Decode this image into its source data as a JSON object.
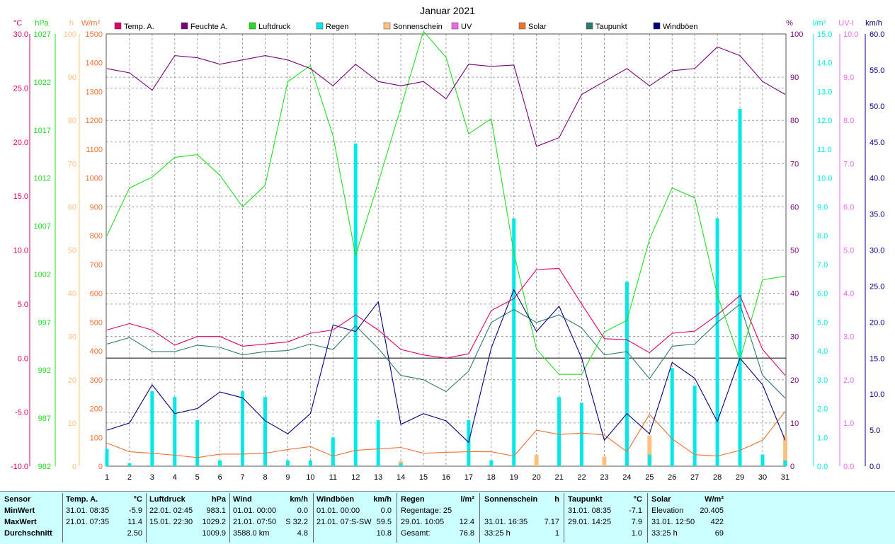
{
  "title": "Januar 2021",
  "colors": {
    "temp": "#e0006a",
    "hum": "#7a007a",
    "press": "#22dd22",
    "rain": "#00e8e8",
    "sun": "#ffc080",
    "uv": "#ee66ee",
    "solar": "#f07030",
    "dew": "#2f7a70",
    "gust": "#000080",
    "stats_bg": "#ccffff"
  },
  "legend": [
    {
      "key": "temp",
      "label": "Temp. A."
    },
    {
      "key": "hum",
      "label": "Feuchte A."
    },
    {
      "key": "press",
      "label": "Luftdruck"
    },
    {
      "key": "rain",
      "label": "Regen"
    },
    {
      "key": "sun",
      "label": "Sonnenschein"
    },
    {
      "key": "uv",
      "label": "UV"
    },
    {
      "key": "solar",
      "label": "Solar"
    },
    {
      "key": "dew",
      "label": "Taupunkt"
    },
    {
      "key": "gust",
      "label": "Windböen"
    }
  ],
  "axis_units": {
    "temp": "°C",
    "press": "hPa",
    "sun": "h",
    "solar": "W/m²",
    "hum": "%",
    "rain": "l/m²",
    "uv": "UV-I",
    "wind": "km/h"
  },
  "chart_data": {
    "type": "line",
    "title": "Januar 2021",
    "x": [
      1,
      2,
      3,
      4,
      5,
      6,
      7,
      8,
      9,
      10,
      11,
      12,
      13,
      14,
      15,
      16,
      17,
      18,
      19,
      20,
      21,
      22,
      23,
      24,
      25,
      26,
      27,
      28,
      29,
      30,
      31
    ],
    "axes": {
      "temp": {
        "range": [
          -10,
          30
        ],
        "ticks": [
          "30.0",
          "25.0",
          "20.0",
          "15.0",
          "10.0",
          "5.0",
          "0.0",
          "-5.0",
          "-10.0"
        ]
      },
      "press": {
        "range": [
          982,
          1030
        ],
        "ticks": [
          "1027",
          "1022",
          "1017",
          "1012",
          "1007",
          "1002",
          "997",
          "992",
          "987",
          "982"
        ]
      },
      "sun": {
        "range": [
          0,
          100
        ],
        "ticks": [
          "100",
          "90",
          "80",
          "70",
          "60",
          "50",
          "40",
          "30",
          "20",
          "10",
          "0"
        ]
      },
      "solar": {
        "range": [
          0,
          1500
        ],
        "ticks": [
          "1500",
          "1400",
          "1300",
          "1200",
          "1100",
          "1000",
          "900",
          "800",
          "700",
          "600",
          "500",
          "400",
          "300",
          "200",
          "100",
          "0"
        ]
      },
      "hum": {
        "range": [
          0,
          100
        ],
        "ticks": [
          "100",
          "90",
          "80",
          "70",
          "60",
          "50",
          "40",
          "30",
          "20",
          "10",
          "0"
        ]
      },
      "rain": {
        "range": [
          0,
          15
        ],
        "ticks": [
          "15.0",
          "14.0",
          "13.0",
          "12.0",
          "11.0",
          "10.0",
          "9.0",
          "8.0",
          "7.0",
          "6.0",
          "5.0",
          "4.0",
          "3.0",
          "2.0",
          "1.0",
          "0.0"
        ]
      },
      "uv": {
        "range": [
          0,
          10
        ],
        "ticks": [
          "10.0",
          "9.0",
          "8.0",
          "7.0",
          "6.0",
          "5.0",
          "4.0",
          "3.0",
          "2.0",
          "1.0",
          "0.0"
        ]
      },
      "wind": {
        "range": [
          0,
          60
        ],
        "ticks": [
          "60.0",
          "55.0",
          "50.0",
          "45.0",
          "40.0",
          "35.0",
          "30.0",
          "25.0",
          "20.0",
          "15.0",
          "10.0",
          "5.0",
          "0.0"
        ]
      }
    },
    "series": [
      {
        "key": "temp",
        "name": "Temp. A.",
        "axis": "temp",
        "values": [
          2.6,
          3.2,
          2.6,
          1.2,
          2.0,
          2.0,
          1.1,
          1.3,
          1.5,
          2.3,
          2.6,
          4.0,
          2.6,
          0.8,
          0.3,
          0.0,
          0.4,
          4.4,
          5.5,
          8.2,
          8.3,
          5.0,
          1.8,
          1.7,
          0.5,
          2.3,
          2.5,
          4.0,
          5.8,
          0.8,
          -1.6
        ]
      },
      {
        "key": "hum",
        "name": "Feuchte A.",
        "axis": "hum",
        "values": [
          92,
          91,
          87,
          95,
          94.5,
          93,
          94,
          95,
          94,
          92,
          88,
          93,
          89,
          88,
          89,
          85,
          93,
          92.5,
          92.8,
          74,
          76,
          86,
          89,
          92,
          88,
          91.5,
          92,
          97,
          95,
          89,
          86
        ]
      },
      {
        "key": "press",
        "name": "Luftdruck",
        "axis": "press",
        "values": [
          1007.6,
          1012.9,
          1014.1,
          1016.3,
          1016.6,
          1014.3,
          1010.8,
          1013.2,
          1024.7,
          1026.5,
          1018.7,
          1005.4,
          1013.5,
          1021.8,
          1030.3,
          1027.4,
          1018.9,
          1020.6,
          1005.7,
          995.0,
          992.2,
          992.2,
          996.9,
          998.2,
          1007.2,
          1012.9,
          1011.8,
          1001.0,
          993.8,
          1002.7,
          1003.1
        ]
      },
      {
        "key": "dew",
        "name": "Taupunkt",
        "axis": "temp",
        "values": [
          1.3,
          1.9,
          0.6,
          0.6,
          1.2,
          1.0,
          0.3,
          0.6,
          0.7,
          1.3,
          0.8,
          3.0,
          0.9,
          -1.6,
          -2.0,
          -3.1,
          -1.2,
          3.3,
          4.5,
          3.3,
          4.0,
          2.8,
          0.3,
          0.6,
          -1.9,
          1.1,
          1.3,
          3.3,
          5.0,
          -1.6,
          -3.7
        ]
      },
      {
        "key": "gust",
        "name": "Windböen",
        "axis": "wind",
        "values": [
          5.0,
          6.0,
          11.3,
          7.3,
          8.0,
          10.3,
          9.5,
          6.3,
          4.5,
          7.3,
          19.6,
          18.7,
          22.8,
          5.8,
          7.3,
          6.3,
          3.3,
          16.4,
          24.5,
          18.7,
          22.2,
          15.0,
          3.6,
          7.3,
          4.5,
          14.4,
          12.2,
          6.2,
          15.0,
          11.3,
          3.6
        ]
      },
      {
        "key": "solar",
        "name": "Solar",
        "axis": "solar",
        "values": [
          80,
          50,
          45,
          38,
          30,
          42,
          42,
          45,
          58,
          68,
          35,
          55,
          60,
          65,
          45,
          48,
          50,
          50,
          35,
          125,
          110,
          115,
          108,
          50,
          180,
          95,
          40,
          35,
          55,
          90,
          190
        ]
      },
      {
        "key": "sun",
        "name": "Sonnenschein",
        "axis": "sun",
        "values": [
          0,
          0,
          0,
          0,
          0,
          0,
          0,
          0,
          0,
          0,
          0,
          0,
          0,
          1.2,
          0,
          0,
          0,
          0,
          0,
          2.6,
          0,
          0,
          2.2,
          0,
          7.1,
          0,
          0,
          0,
          0,
          0,
          7.2
        ]
      },
      {
        "key": "rain",
        "name": "Regen",
        "axis": "rain",
        "values": [
          0.6,
          0.1,
          2.6,
          2.4,
          1.6,
          0.2,
          2.6,
          2.4,
          0.2,
          0.2,
          1.0,
          11.2,
          1.6,
          0.1,
          0,
          0,
          1.6,
          0.2,
          8.6,
          0,
          2.4,
          2.2,
          0,
          6.4,
          0.4,
          3.4,
          2.8,
          8.6,
          12.4,
          0.4,
          0.2
        ]
      }
    ]
  },
  "stats": {
    "sensor": {
      "header": "Sensor",
      "min": "MinWert",
      "max": "MaxWert",
      "avg": "Durchschnitt"
    },
    "temp": {
      "header": "Temp. A.",
      "unit": "°C",
      "min_date": "31.01.  08:35",
      "min_val": "-5.9",
      "max_date": "21.01.  07:35",
      "max_val": "11.4",
      "avg_val": "2.50"
    },
    "press": {
      "header": "Luftdruck",
      "unit": "hPa",
      "min_date": "22.01.  02:45",
      "min_val": "983.1",
      "max_date": "15.01.  22:30",
      "max_val": "1029.2",
      "avg_val": "1009.9"
    },
    "wind": {
      "header": "Wind",
      "unit": "km/h",
      "min_date": "01.01.  00:00",
      "min_val": "0.0",
      "max_date": "21.01.  07:50",
      "max_val": "S 32.2",
      "avg_left": "3588.0 km",
      "avg_val": "4.8"
    },
    "gust": {
      "header": "Windböen",
      "unit": "km/h",
      "min_date": "01.01.  00:00",
      "min_val": "0.0",
      "max_date": "21.01.  07:S-SW",
      "max_val": "59.5",
      "avg_val": "10.8"
    },
    "rain": {
      "header": "Regen",
      "unit": "l/m²",
      "min_date": "Regentage: 25",
      "min_val": "",
      "max_date": "29.01.  10:05",
      "max_val": "12.4",
      "avg_left": "Gesamt:",
      "avg_val": "76.8"
    },
    "sun": {
      "header": "Sonnenschein",
      "unit": "h",
      "min_date": "",
      "min_val": "",
      "max_date": "31.01.  16:35",
      "max_val": "7.17",
      "avg_left": "33:25 h",
      "avg_val": "1"
    },
    "dew": {
      "header": "Taupunkt",
      "unit": "°C",
      "min_date": "31.01.  08:35",
      "min_val": "-7.1",
      "max_date": "29.01.  14:25",
      "max_val": "7.9",
      "avg_val": "1.0"
    },
    "solar": {
      "header": "Solar",
      "unit": "W/m²",
      "min_date": "Elevation",
      "min_val": "20.405",
      "max_date": "31.01.  12:50",
      "max_val": "422",
      "avg_left": "33:25 h",
      "avg_val": "69"
    }
  }
}
